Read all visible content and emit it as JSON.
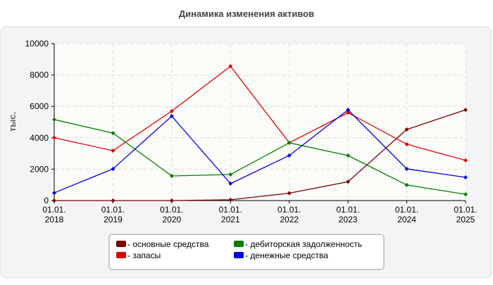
{
  "chart_data": {
    "type": "line",
    "title": "Динамика изменения активов",
    "ylabel": "тыс.",
    "categories": [
      [
        "01.01.",
        "2018"
      ],
      [
        "01.01.",
        "2019"
      ],
      [
        "01.01.",
        "2020"
      ],
      [
        "01.01.",
        "2021"
      ],
      [
        "01.01.",
        "2022"
      ],
      [
        "01.01.",
        "2023"
      ],
      [
        "01.01.",
        "2024"
      ],
      [
        "01.01.",
        "2025"
      ]
    ],
    "series": [
      {
        "name": "- основные средства",
        "color": "#7a0000",
        "values": [
          0,
          0,
          0,
          50,
          470,
          1200,
          4530,
          5780
        ]
      },
      {
        "name": "- запасы",
        "color": "#e00000",
        "values": [
          4000,
          3180,
          5700,
          8560,
          3680,
          5600,
          3590,
          2560
        ]
      },
      {
        "name": "- дебиторская задолженность",
        "color": "#008000",
        "values": [
          5160,
          4300,
          1570,
          1660,
          3680,
          2870,
          990,
          400
        ]
      },
      {
        "name": "- денежные средства",
        "color": "#0000e0",
        "values": [
          490,
          2020,
          5380,
          1080,
          2870,
          5780,
          2020,
          1480
        ]
      }
    ],
    "ylim": [
      0,
      10000
    ],
    "yticks": [
      0,
      2000,
      4000,
      6000,
      8000,
      10000
    ],
    "grid": true
  }
}
